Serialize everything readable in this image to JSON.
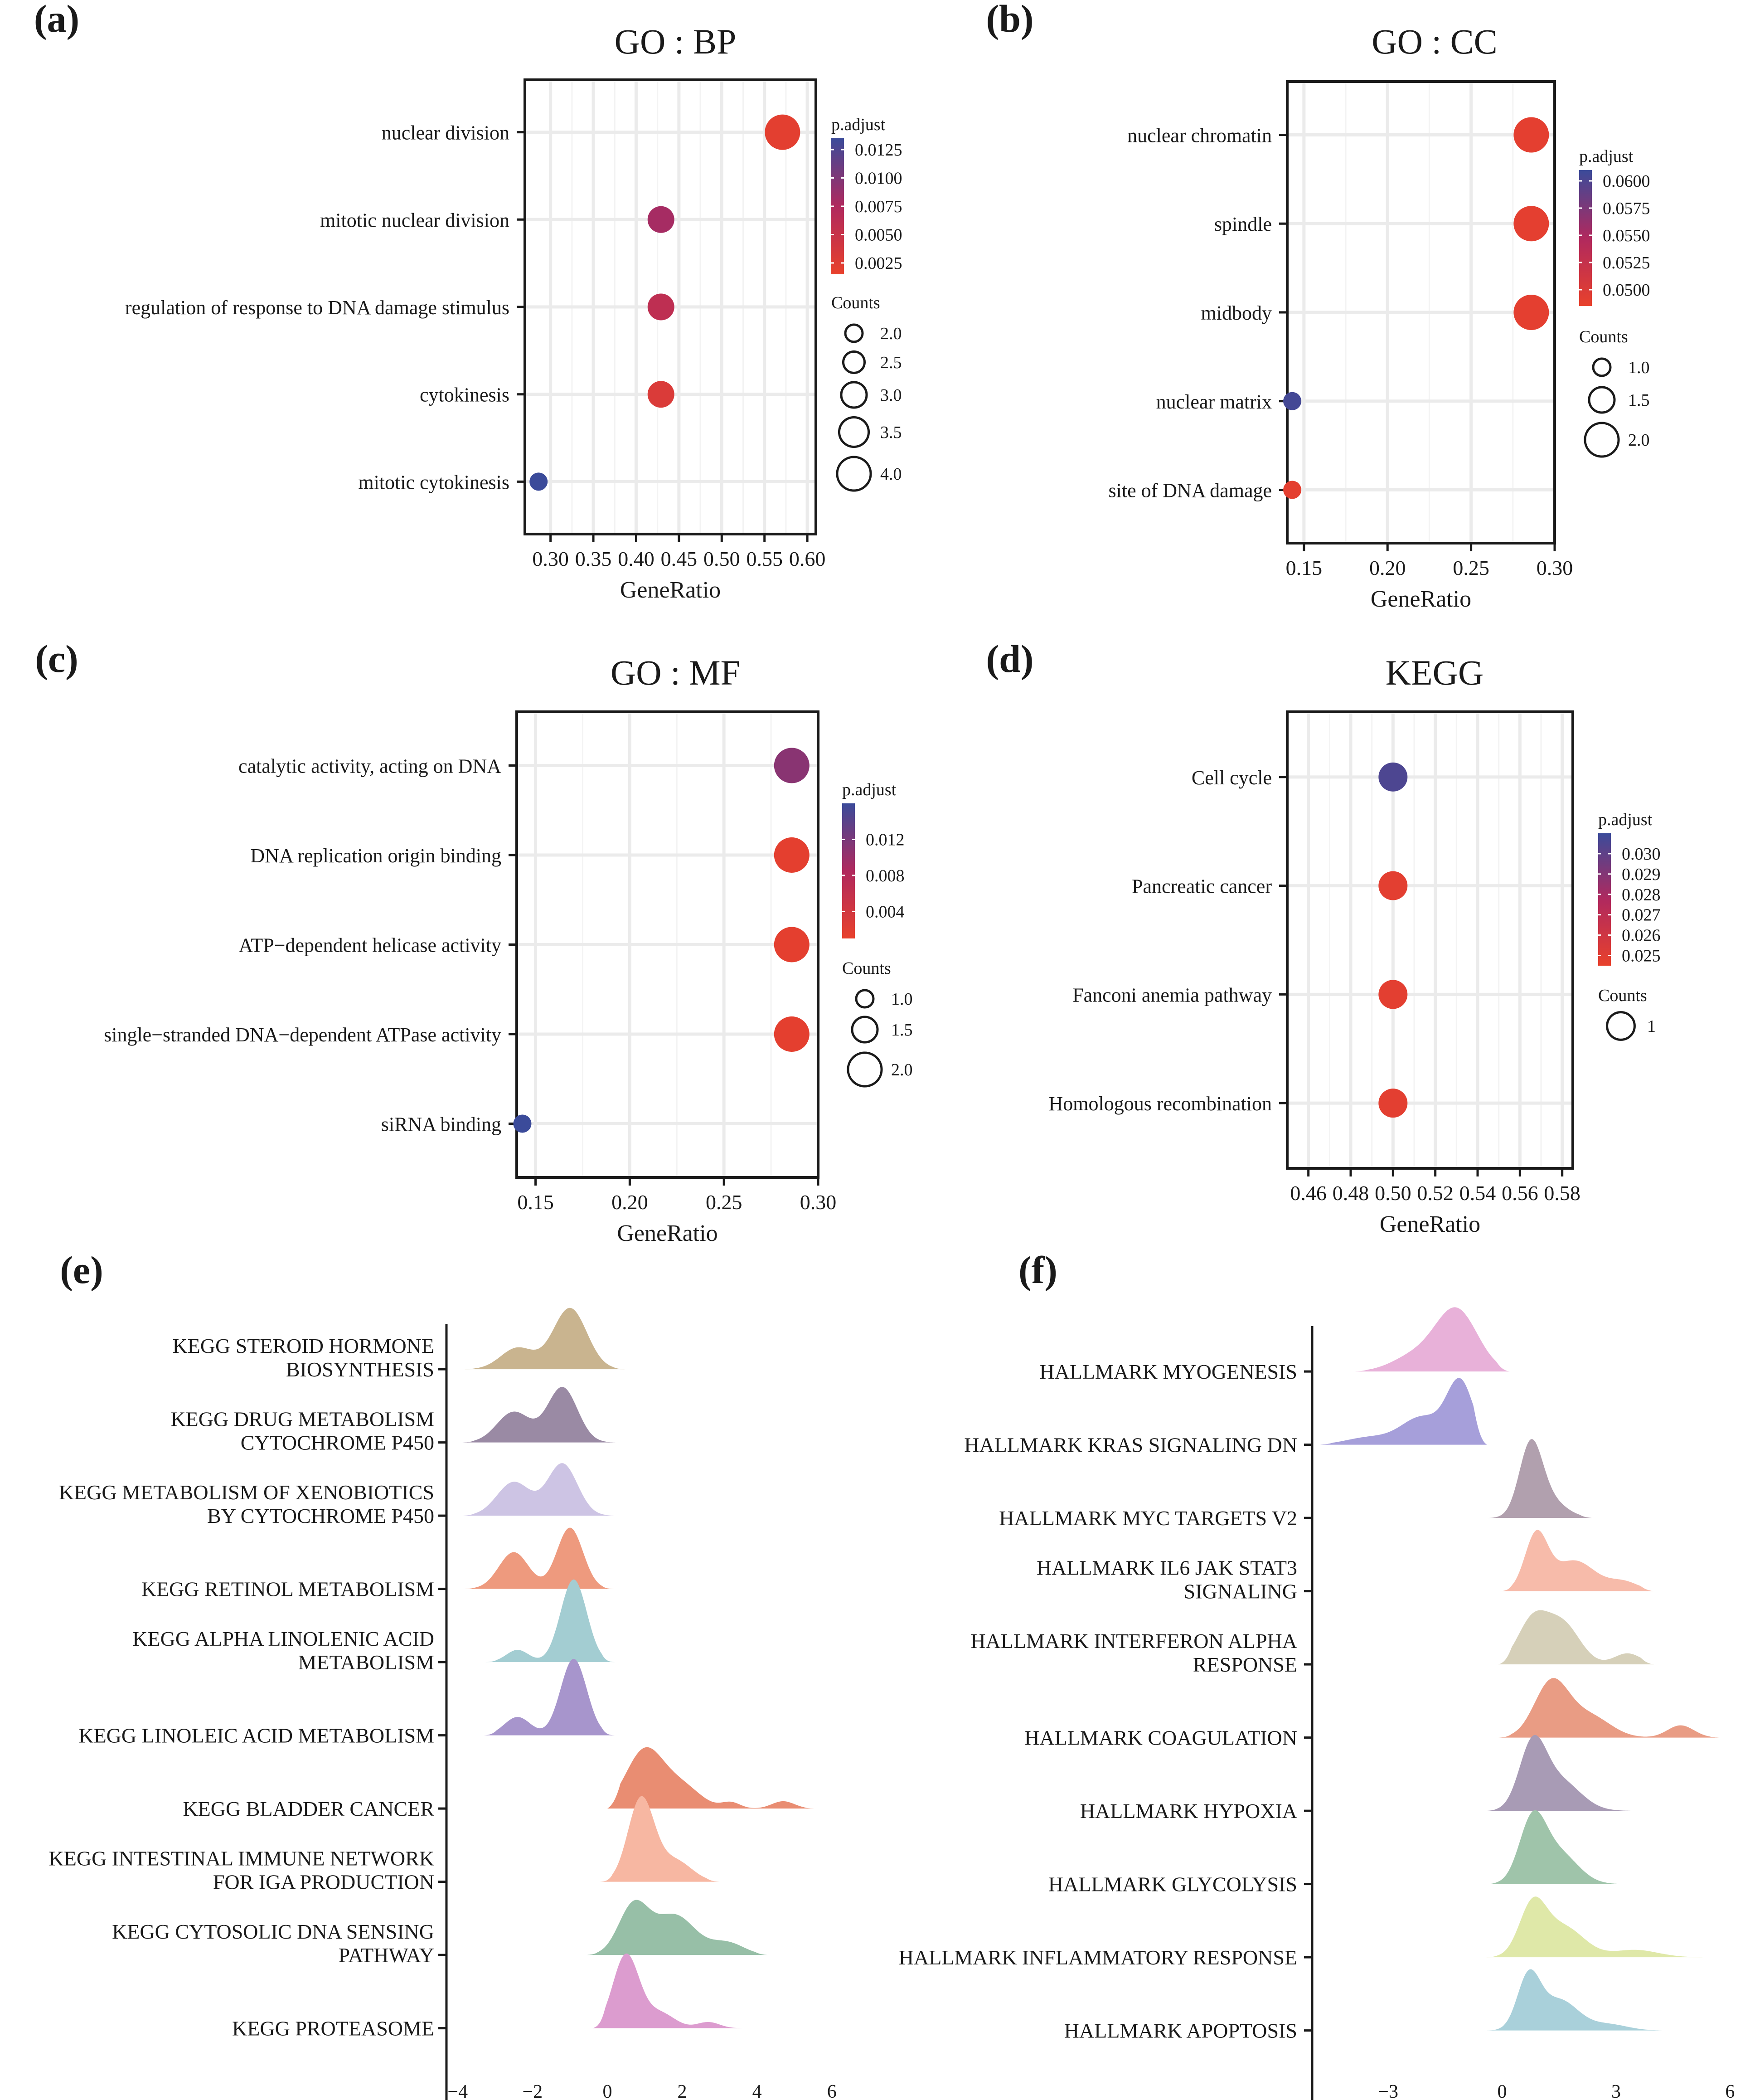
{
  "colors": {
    "low": "#e8412c",
    "mid": "#b0295e",
    "high": "#3b4b9a",
    "grid": "#ebebeb",
    "frame": "#1a1a1a"
  },
  "chart_data": [
    {
      "panel": "(a)",
      "type": "scatter",
      "title": "GO : BP",
      "xlabel": "GeneRatio",
      "xlim": [
        0.27,
        0.61
      ],
      "xticks": [
        0.3,
        0.35,
        0.4,
        0.45,
        0.5,
        0.55,
        0.6
      ],
      "xtick_labels": [
        "0.30",
        "0.35",
        "0.40",
        "0.45",
        "0.50",
        "0.55",
        "0.60"
      ],
      "categories": [
        "nuclear division",
        "mitotic nuclear division",
        "regulation of response to DNA damage stimulus",
        "cytokinesis",
        "mitotic cytokinesis"
      ],
      "x": [
        0.571,
        0.429,
        0.429,
        0.429,
        0.286
      ],
      "counts": [
        4,
        3,
        3,
        3,
        2
      ],
      "p_adjust": [
        0.002,
        0.008,
        0.006,
        0.003,
        0.0135
      ],
      "color_legend": {
        "title": "p.adjust",
        "range": [
          0.0015,
          0.0135
        ],
        "ticks": [
          0.0125,
          0.01,
          0.0075,
          0.005,
          0.0025
        ],
        "labels": [
          "0.0125",
          "0.0100",
          "0.0075",
          "0.0050",
          "0.0025"
        ]
      },
      "size_legend": {
        "title": "Counts",
        "values": [
          2.0,
          2.5,
          3.0,
          3.5,
          4.0
        ],
        "labels": [
          "2.0",
          "2.5",
          "3.0",
          "3.5",
          "4.0"
        ]
      }
    },
    {
      "panel": "(b)",
      "type": "scatter",
      "title": "GO : CC",
      "xlabel": "GeneRatio",
      "xlim": [
        0.14,
        0.3
      ],
      "xticks": [
        0.15,
        0.2,
        0.25,
        0.3
      ],
      "xtick_labels": [
        "0.15",
        "0.20",
        "0.25",
        "0.30"
      ],
      "categories": [
        "nuclear chromatin",
        "spindle",
        "midbody",
        "nuclear matrix",
        "site of DNA damage"
      ],
      "x": [
        0.286,
        0.286,
        0.286,
        0.143,
        0.143
      ],
      "counts": [
        2,
        2,
        2,
        1,
        1
      ],
      "p_adjust": [
        0.049,
        0.049,
        0.049,
        0.0605,
        0.049
      ],
      "color_legend": {
        "title": "p.adjust",
        "range": [
          0.0485,
          0.061
        ],
        "ticks": [
          0.06,
          0.0575,
          0.055,
          0.0525,
          0.05
        ],
        "labels": [
          "0.0600",
          "0.0575",
          "0.0550",
          "0.0525",
          "0.0500"
        ]
      },
      "size_legend": {
        "title": "Counts",
        "values": [
          1.0,
          1.5,
          2.0
        ],
        "labels": [
          "1.0",
          "1.5",
          "2.0"
        ]
      }
    },
    {
      "panel": "(c)",
      "type": "scatter",
      "title": "GO : MF",
      "xlabel": "GeneRatio",
      "xlim": [
        0.14,
        0.3
      ],
      "xticks": [
        0.15,
        0.2,
        0.25,
        0.3
      ],
      "xtick_labels": [
        "0.15",
        "0.20",
        "0.25",
        "0.30"
      ],
      "categories": [
        "catalytic activity, acting on DNA",
        "DNA replication origin binding",
        "ATP−dependent helicase activity",
        "single−stranded DNA−dependent ATPase activity",
        "siRNA binding"
      ],
      "x": [
        0.286,
        0.286,
        0.286,
        0.286,
        0.143
      ],
      "counts": [
        2,
        2,
        2,
        2,
        1
      ],
      "p_adjust": [
        0.011,
        0.0015,
        0.0015,
        0.0015,
        0.016
      ],
      "color_legend": {
        "title": "p.adjust",
        "range": [
          0.001,
          0.016
        ],
        "ticks": [
          0.012,
          0.008,
          0.004
        ],
        "labels": [
          "0.012",
          "0.008",
          "0.004"
        ]
      },
      "size_legend": {
        "title": "Counts",
        "values": [
          1.0,
          1.5,
          2.0
        ],
        "labels": [
          "1.0",
          "1.5",
          "2.0"
        ]
      }
    },
    {
      "panel": "(d)",
      "type": "scatter",
      "title": "KEGG",
      "xlabel": "GeneRatio",
      "xlim": [
        0.45,
        0.585
      ],
      "xticks": [
        0.46,
        0.48,
        0.5,
        0.52,
        0.54,
        0.56,
        0.58
      ],
      "xtick_labels": [
        "0.46",
        "0.48",
        "0.50",
        "0.52",
        "0.54",
        "0.56",
        "0.58"
      ],
      "categories": [
        "Cell cycle",
        "Pancreatic cancer",
        "Fanconi anemia pathway",
        "Homologous recombination"
      ],
      "x": [
        0.5,
        0.5,
        0.5,
        0.5
      ],
      "counts": [
        1,
        1,
        1,
        1
      ],
      "p_adjust": [
        0.0305,
        0.0248,
        0.0248,
        0.0248
      ],
      "color_legend": {
        "title": "p.adjust",
        "range": [
          0.0245,
          0.031
        ],
        "ticks": [
          0.03,
          0.029,
          0.028,
          0.027,
          0.026,
          0.025
        ],
        "labels": [
          "0.030",
          "0.029",
          "0.028",
          "0.027",
          "0.026",
          "0.025"
        ]
      },
      "size_legend": {
        "title": "Counts",
        "values": [
          1
        ],
        "labels": [
          "1"
        ]
      }
    },
    {
      "panel": "(e)",
      "type": "area",
      "subtype": "ridgeline",
      "xlim": [
        -4.3,
        6.3
      ],
      "xticks": [
        -4,
        -2,
        0,
        2,
        4,
        6
      ],
      "xtick_labels": [
        "−4",
        "−2",
        "0",
        "2",
        "4",
        "6"
      ],
      "series": [
        {
          "name": "KEGG STEROID HORMONE\nBIOSYNTHESIS",
          "color": "#c9b48f",
          "range": [
            -3.9,
            0.5
          ],
          "peaks": [
            [
              -2.4,
              0.35,
              0.45
            ],
            [
              -1.0,
              1.0,
              0.45
            ]
          ]
        },
        {
          "name": "KEGG DRUG METABOLISM\nCYTOCHROME P450",
          "color": "#9a8aa4",
          "range": [
            -3.9,
            0.3
          ],
          "peaks": [
            [
              -2.5,
              0.5,
              0.45
            ],
            [
              -1.2,
              0.9,
              0.4
            ]
          ]
        },
        {
          "name": "KEGG METABOLISM OF XENOBIOTICS\nBY CYTOCHROME P450",
          "color": "#cdc4e4",
          "range": [
            -3.9,
            0.3
          ],
          "peaks": [
            [
              -2.5,
              0.55,
              0.45
            ],
            [
              -1.2,
              0.85,
              0.4
            ]
          ]
        },
        {
          "name": "KEGG RETINOL METABOLISM",
          "color": "#ee9a7e",
          "range": [
            -3.9,
            0.2
          ],
          "peaks": [
            [
              -2.5,
              0.6,
              0.4
            ],
            [
              -1.0,
              1.0,
              0.35
            ]
          ]
        },
        {
          "name": "KEGG ALPHA LINOLENIC ACID\nMETABOLISM",
          "color": "#a3cdd2",
          "range": [
            -3.3,
            0.2
          ],
          "peaks": [
            [
              -2.4,
              0.2,
              0.3
            ],
            [
              -0.9,
              1.35,
              0.35
            ]
          ]
        },
        {
          "name": "KEGG LINOLEIC ACID METABOLISM",
          "color": "#a795cc",
          "range": [
            -3.3,
            0.2
          ],
          "peaks": [
            [
              -2.4,
              0.3,
              0.35
            ],
            [
              -0.9,
              1.25,
              0.35
            ]
          ]
        },
        {
          "name": "KEGG BLADDER CANCER",
          "color": "#e98d72",
          "range": [
            0.0,
            5.6
          ],
          "peaks": [
            [
              1.0,
              0.95,
              0.5
            ],
            [
              2.0,
              0.35,
              0.5
            ],
            [
              3.3,
              0.1,
              0.25
            ],
            [
              4.7,
              0.12,
              0.3
            ]
          ]
        },
        {
          "name": "KEGG INTESTINAL IMMUNE NETWORK\nFOR IGA PRODUCTION",
          "color": "#f7b7a2",
          "range": [
            -0.2,
            3.0
          ],
          "peaks": [
            [
              0.9,
              1.35,
              0.35
            ],
            [
              1.8,
              0.35,
              0.45
            ]
          ]
        },
        {
          "name": "KEGG CYTOSOLIC DNA SENSING\nPATHWAY",
          "color": "#97bfa7",
          "range": [
            -0.6,
            4.3
          ],
          "peaks": [
            [
              0.7,
              0.8,
              0.4
            ],
            [
              1.8,
              0.65,
              0.55
            ],
            [
              3.2,
              0.2,
              0.45
            ]
          ]
        },
        {
          "name": "KEGG PROTEASOME",
          "color": "#dc9ccf",
          "range": [
            -0.4,
            3.8
          ],
          "peaks": [
            [
              0.5,
              1.2,
              0.35
            ],
            [
              1.4,
              0.25,
              0.4
            ],
            [
              2.7,
              0.1,
              0.3
            ]
          ]
        }
      ]
    },
    {
      "panel": "(f)",
      "type": "area",
      "subtype": "ridgeline",
      "xlim": [
        -5.0,
        6.3
      ],
      "xticks": [
        -3,
        0,
        3,
        6
      ],
      "xtick_labels": [
        "−3",
        "0",
        "3",
        "6"
      ],
      "series": [
        {
          "name": "HALLMARK MYOGENESIS",
          "color": "#e8b1d9",
          "range": [
            -3.9,
            0.2
          ],
          "peaks": [
            [
              -1.2,
              1.0,
              0.55
            ],
            [
              -2.3,
              0.25,
              0.6
            ]
          ]
        },
        {
          "name": "HALLMARK KRAS SIGNALING DN",
          "color": "#a69fda",
          "range": [
            -4.8,
            -0.4
          ],
          "peaks": [
            [
              -1.1,
              1.0,
              0.35
            ],
            [
              -2.1,
              0.45,
              0.55
            ],
            [
              -3.5,
              0.12,
              0.6
            ]
          ]
        },
        {
          "name": "HALLMARK MYC TARGETS V2",
          "color": "#b1a0ae",
          "range": [
            -0.5,
            2.4
          ],
          "peaks": [
            [
              0.75,
              1.1,
              0.3
            ],
            [
              1.2,
              0.3,
              0.45
            ]
          ]
        },
        {
          "name": "HALLMARK IL6 JAK STAT3\nSIGNALING",
          "color": "#f7bbaa",
          "range": [
            -0.1,
            4.0
          ],
          "peaks": [
            [
              0.9,
              0.9,
              0.3
            ],
            [
              1.9,
              0.5,
              0.55
            ],
            [
              3.2,
              0.15,
              0.4
            ]
          ]
        },
        {
          "name": "HALLMARK INTERFERON ALPHA\nRESPONSE",
          "color": "#d6d0b9",
          "range": [
            -0.1,
            4.0
          ],
          "peaks": [
            [
              0.8,
              0.7,
              0.4
            ],
            [
              1.6,
              0.65,
              0.45
            ],
            [
              3.3,
              0.18,
              0.35
            ]
          ]
        },
        {
          "name": "HALLMARK COAGULATION",
          "color": "#e99c84",
          "range": [
            -0.1,
            5.8
          ],
          "peaks": [
            [
              1.3,
              0.9,
              0.45
            ],
            [
              2.3,
              0.35,
              0.55
            ],
            [
              4.7,
              0.2,
              0.35
            ]
          ]
        },
        {
          "name": "HALLMARK HYPOXIA",
          "color": "#a89bb5",
          "range": [
            -0.5,
            3.7
          ],
          "peaks": [
            [
              0.8,
              1.0,
              0.35
            ],
            [
              1.5,
              0.5,
              0.55
            ]
          ]
        },
        {
          "name": "HALLMARK GLYCOLYSIS",
          "color": "#9fc4aa",
          "range": [
            -0.5,
            3.6
          ],
          "peaks": [
            [
              0.8,
              1.0,
              0.35
            ],
            [
              1.5,
              0.5,
              0.5
            ]
          ]
        },
        {
          "name": "HALLMARK INFLAMMATORY RESPONSE",
          "color": "#dfe8a8",
          "range": [
            -0.5,
            5.4
          ],
          "peaks": [
            [
              0.8,
              0.8,
              0.35
            ],
            [
              1.6,
              0.5,
              0.55
            ],
            [
              3.5,
              0.12,
              0.6
            ]
          ]
        },
        {
          "name": "HALLMARK APOPTOSIS",
          "color": "#a9d0da",
          "range": [
            -0.5,
            4.3
          ],
          "peaks": [
            [
              0.7,
              0.85,
              0.3
            ],
            [
              1.5,
              0.5,
              0.5
            ],
            [
              2.8,
              0.1,
              0.5
            ]
          ]
        }
      ]
    }
  ]
}
